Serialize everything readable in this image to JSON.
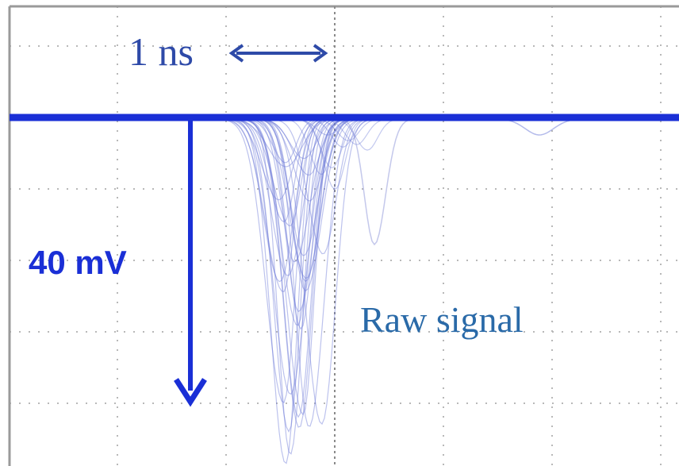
{
  "time_label": "1 ns",
  "amplitude_label": "40 mV",
  "caption": "Raw signal"
}
